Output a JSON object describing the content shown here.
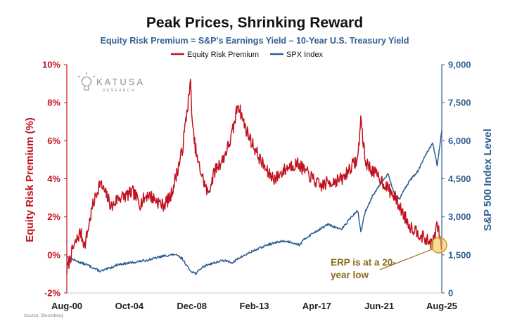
{
  "colors": {
    "erp": "#c1121f",
    "spx": "#2f5f93",
    "annotation": "#8a6a1c",
    "highlight": "#f2c04a"
  },
  "logo": {
    "name": "KATUSA",
    "sub": "RESEARCH",
    "icon": "lightbulb-icon"
  },
  "source": "Source: Bloomberg",
  "annotation": {
    "line1": "ERP is at a 20-",
    "line2": "year low"
  },
  "chart_data": {
    "type": "line",
    "title": "Peak Prices, Shrinking Reward",
    "subtitle": "Equity Risk Premium = S&P's Earnings Yield – 10-Year U.S. Treasury Yield",
    "x_tick_labels": [
      "Aug-00",
      "Oct-04",
      "Dec-08",
      "Feb-13",
      "Apr-17",
      "Jun-21",
      "Aug-25"
    ],
    "x_range": [
      "Aug-00",
      "Aug-25"
    ],
    "y_left": {
      "label": "Equity Risk Premium (%)",
      "range": [
        -2,
        10
      ],
      "ticks": [
        "-2%",
        "0%",
        "2%",
        "4%",
        "6%",
        "8%",
        "10%"
      ]
    },
    "y_right": {
      "label": "S&P 500 Index Level",
      "range": [
        0,
        9000
      ],
      "ticks": [
        "0",
        "1,500",
        "3,000",
        "4,500",
        "6,000",
        "7,500",
        "9,000"
      ]
    },
    "legend": {
      "position": "top-center"
    },
    "grid": false,
    "series": [
      {
        "name": "Equity Risk Premium",
        "axis": "left",
        "x": [
          2000.6,
          2001.0,
          2001.5,
          2001.8,
          2002.3,
          2002.8,
          2003.2,
          2003.6,
          2004.0,
          2004.5,
          2005.0,
          2005.5,
          2006.0,
          2006.5,
          2007.0,
          2007.5,
          2008.0,
          2008.3,
          2008.6,
          2008.85,
          2009.0,
          2009.3,
          2009.6,
          2010.0,
          2010.5,
          2011.0,
          2011.5,
          2011.8,
          2012.0,
          2012.3,
          2012.6,
          2013.0,
          2013.5,
          2014.0,
          2014.5,
          2015.0,
          2015.5,
          2016.0,
          2016.5,
          2017.0,
          2017.5,
          2018.0,
          2018.5,
          2019.0,
          2019.5,
          2020.0,
          2020.2,
          2020.5,
          2021.0,
          2021.5,
          2022.0,
          2022.5,
          2023.0,
          2023.5,
          2024.0,
          2024.5,
          2025.0,
          2025.3,
          2025.6
        ],
        "values": [
          -0.8,
          0.3,
          1.2,
          0.5,
          2.5,
          3.8,
          3.2,
          2.5,
          3.0,
          3.1,
          3.3,
          2.7,
          3.2,
          2.9,
          2.6,
          3.0,
          4.5,
          5.5,
          7.5,
          9.0,
          6.5,
          5.0,
          4.2,
          3.2,
          4.5,
          5.0,
          6.0,
          7.0,
          8.0,
          7.2,
          6.5,
          5.8,
          5.0,
          4.3,
          4.0,
          4.4,
          4.7,
          4.8,
          4.4,
          4.0,
          3.6,
          3.8,
          3.9,
          4.0,
          4.6,
          5.0,
          7.2,
          4.9,
          4.4,
          4.0,
          3.5,
          3.0,
          2.2,
          1.5,
          1.2,
          0.8,
          0.6,
          1.6,
          0.4
        ]
      },
      {
        "name": "SPX Index",
        "axis": "right",
        "x": [
          2000.6,
          2001.0,
          2001.5,
          2002.0,
          2002.5,
          2002.8,
          2003.0,
          2003.5,
          2004.0,
          2005.0,
          2006.0,
          2007.0,
          2007.8,
          2008.3,
          2008.8,
          2009.2,
          2009.6,
          2010.0,
          2011.0,
          2011.7,
          2012.0,
          2013.0,
          2014.0,
          2015.0,
          2015.6,
          2016.1,
          2016.5,
          2017.0,
          2018.0,
          2018.9,
          2019.5,
          2020.0,
          2020.2,
          2020.5,
          2021.0,
          2021.5,
          2022.0,
          2022.5,
          2022.8,
          2023.0,
          2023.5,
          2024.0,
          2024.5,
          2025.0,
          2025.3,
          2025.6
        ],
        "values": [
          1450,
          1320,
          1200,
          1100,
          950,
          860,
          880,
          990,
          1120,
          1200,
          1300,
          1450,
          1520,
          1350,
          900,
          760,
          1000,
          1120,
          1280,
          1200,
          1350,
          1650,
          1900,
          2050,
          2000,
          1900,
          2150,
          2350,
          2700,
          2500,
          2950,
          3250,
          2400,
          3200,
          3850,
          4300,
          4700,
          3800,
          3700,
          4000,
          4450,
          4800,
          5400,
          5900,
          5000,
          6400
        ]
      }
    ]
  }
}
